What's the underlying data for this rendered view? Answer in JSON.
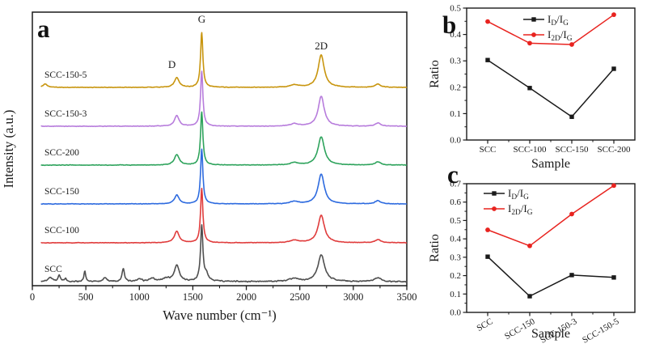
{
  "figure": {
    "background": "#ffffff",
    "description": "Raman spectra and intensity ratio analysis figure"
  },
  "panels": {
    "a": {
      "letter": "a"
    },
    "b": {
      "letter": "b"
    },
    "c": {
      "letter": "c"
    }
  },
  "chart_data": [
    {
      "panel": "a",
      "type": "line",
      "subtype": "raman_spectra",
      "xlabel": "Wave number (cm⁻¹)",
      "ylabel": "Intensity (a.u.)",
      "xlim": [
        0,
        3500
      ],
      "xticks": [
        "0",
        "500",
        "1000",
        "1500",
        "2000",
        "2500",
        "3000",
        "3500"
      ],
      "x_minor_step": 250,
      "grid": false,
      "peak_labels": [
        {
          "text": "D",
          "x": 1350
        },
        {
          "text": "G",
          "x": 1583
        },
        {
          "text": "2D",
          "x": 2700
        }
      ],
      "series": [
        {
          "label": "SCC-150-5",
          "color": "#c8950e",
          "baseline": 108,
          "noise": 0.45,
          "peaks": [
            [
              120,
              4,
              25
            ],
            [
              1350,
              12,
              26
            ],
            [
              1583,
              68,
              13
            ],
            [
              2450,
              3,
              45
            ],
            [
              2700,
              40,
              34
            ],
            [
              3230,
              4,
              30
            ]
          ]
        },
        {
          "label": "SCC-150-3",
          "color": "#b77cdc",
          "baseline": 156,
          "noise": 0.45,
          "peaks": [
            [
              1350,
              13,
              26
            ],
            [
              1583,
              68,
              13
            ],
            [
              2450,
              3,
              45
            ],
            [
              2700,
              37,
              34
            ],
            [
              3230,
              4,
              30
            ]
          ]
        },
        {
          "label": "SCC-200",
          "color": "#2ea35c",
          "baseline": 204,
          "noise": 0.45,
          "peaks": [
            [
              1350,
              13,
              27
            ],
            [
              1583,
              66,
              13
            ],
            [
              2450,
              3,
              45
            ],
            [
              2700,
              35,
              36
            ],
            [
              3230,
              4,
              30
            ]
          ]
        },
        {
          "label": "SCC-150",
          "color": "#2e6bdf",
          "baseline": 252,
          "noise": 0.45,
          "peaks": [
            [
              1350,
              11,
              26
            ],
            [
              1583,
              68,
              13
            ],
            [
              2450,
              3,
              45
            ],
            [
              2700,
              37,
              35
            ],
            [
              3230,
              4,
              30
            ]
          ]
        },
        {
          "label": "SCC-100",
          "color": "#e03c3c",
          "baseline": 300,
          "noise": 0.45,
          "peaks": [
            [
              1350,
              14,
              27
            ],
            [
              1583,
              67,
              13
            ],
            [
              2450,
              3,
              45
            ],
            [
              2700,
              34,
              36
            ],
            [
              3230,
              4,
              30
            ]
          ]
        },
        {
          "label": "SCC",
          "color": "#4f4f4f",
          "baseline": 348,
          "noise": 1.0,
          "peaks": [
            [
              165,
              5,
              25
            ],
            [
              250,
              8,
              12
            ],
            [
              310,
              4,
              10
            ],
            [
              490,
              13,
              10
            ],
            [
              680,
              5,
              18
            ],
            [
              850,
              16,
              13
            ],
            [
              1000,
              3,
              25
            ],
            [
              1120,
              4,
              28
            ],
            [
              1250,
              4,
              35
            ],
            [
              1350,
              20,
              28
            ],
            [
              1583,
              68,
              13
            ],
            [
              1625,
              8,
              25
            ],
            [
              2450,
              4,
              50
            ],
            [
              2700,
              33,
              38
            ],
            [
              3230,
              5,
              35
            ]
          ]
        }
      ]
    },
    {
      "panel": "b",
      "type": "line",
      "xlabel": "Sample",
      "ylabel": "Ratio",
      "categories": [
        "SCC",
        "SCC-100",
        "SCC-150",
        "SCC-200"
      ],
      "ylim": [
        0.0,
        0.5
      ],
      "ytick_step": 0.1,
      "yticks": [
        "0.0",
        "0.1",
        "0.2",
        "0.3",
        "0.4",
        "0.5"
      ],
      "grid": false,
      "legend_position": "top-center",
      "x_label_rotation": 0,
      "series": [
        {
          "name": "I_{D}/I_{G}",
          "color": "#1a1a1a",
          "marker": "square",
          "values": [
            0.303,
            0.197,
            0.088,
            0.27
          ]
        },
        {
          "name": "I_{2D}/I_{G}",
          "color": "#e8231f",
          "marker": "circle",
          "values": [
            0.449,
            0.367,
            0.362,
            0.475
          ]
        }
      ]
    },
    {
      "panel": "c",
      "type": "line",
      "xlabel": "Sample",
      "ylabel": "Ratio",
      "categories": [
        "SCC",
        "SCC-150",
        "SCC-150-3",
        "SCC-150-5"
      ],
      "ylim": [
        0.0,
        0.7
      ],
      "ytick_step": 0.1,
      "yticks": [
        "0.0",
        "0.1",
        "0.2",
        "0.3",
        "0.4",
        "0.5",
        "0.6",
        "0.7"
      ],
      "grid": false,
      "legend_position": "top-left",
      "x_label_rotation": -30,
      "series": [
        {
          "name": "I_{D}/I_{G}",
          "color": "#1a1a1a",
          "marker": "square",
          "values": [
            0.303,
            0.088,
            0.203,
            0.19
          ]
        },
        {
          "name": "I_{2D}/I_{G}",
          "color": "#e8231f",
          "marker": "circle",
          "values": [
            0.449,
            0.362,
            0.535,
            0.69
          ]
        }
      ]
    }
  ]
}
